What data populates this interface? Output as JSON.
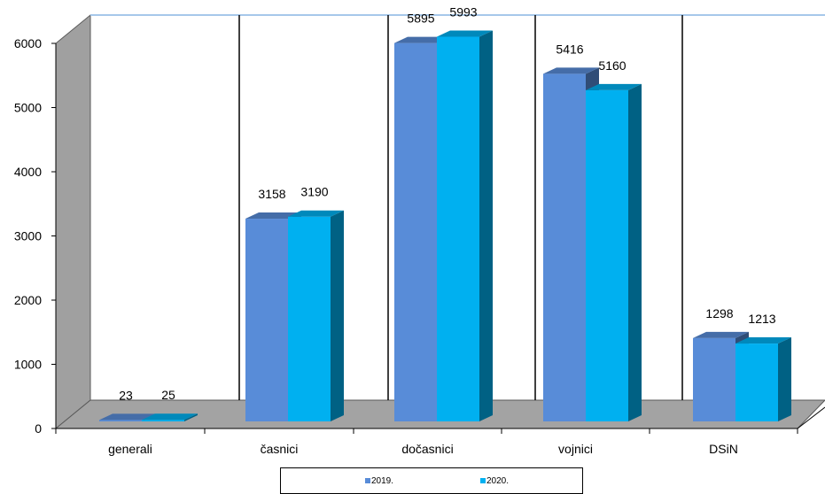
{
  "chart_data": {
    "type": "bar",
    "categories": [
      "generali",
      "časnici",
      "dočasnici",
      "vojnici",
      "DSiN"
    ],
    "series": [
      {
        "name": "2019.",
        "values": [
          23,
          3158,
          5895,
          5416,
          1298
        ]
      },
      {
        "name": "2020.",
        "values": [
          25,
          3190,
          5993,
          5160,
          1213
        ]
      }
    ],
    "y_ticks": [
      "0",
      "1000",
      "2000",
      "3000",
      "4000",
      "5000",
      "6000"
    ],
    "ylim": [
      0,
      6000
    ],
    "legend_position": "bottom",
    "colors": {
      "series_2019": "#588cd8",
      "series_2020": "#00b0f0",
      "back_wall_line": "#a6c8ea",
      "floor": "#a0a0a0",
      "side_wall": "#a0a0a0"
    }
  }
}
